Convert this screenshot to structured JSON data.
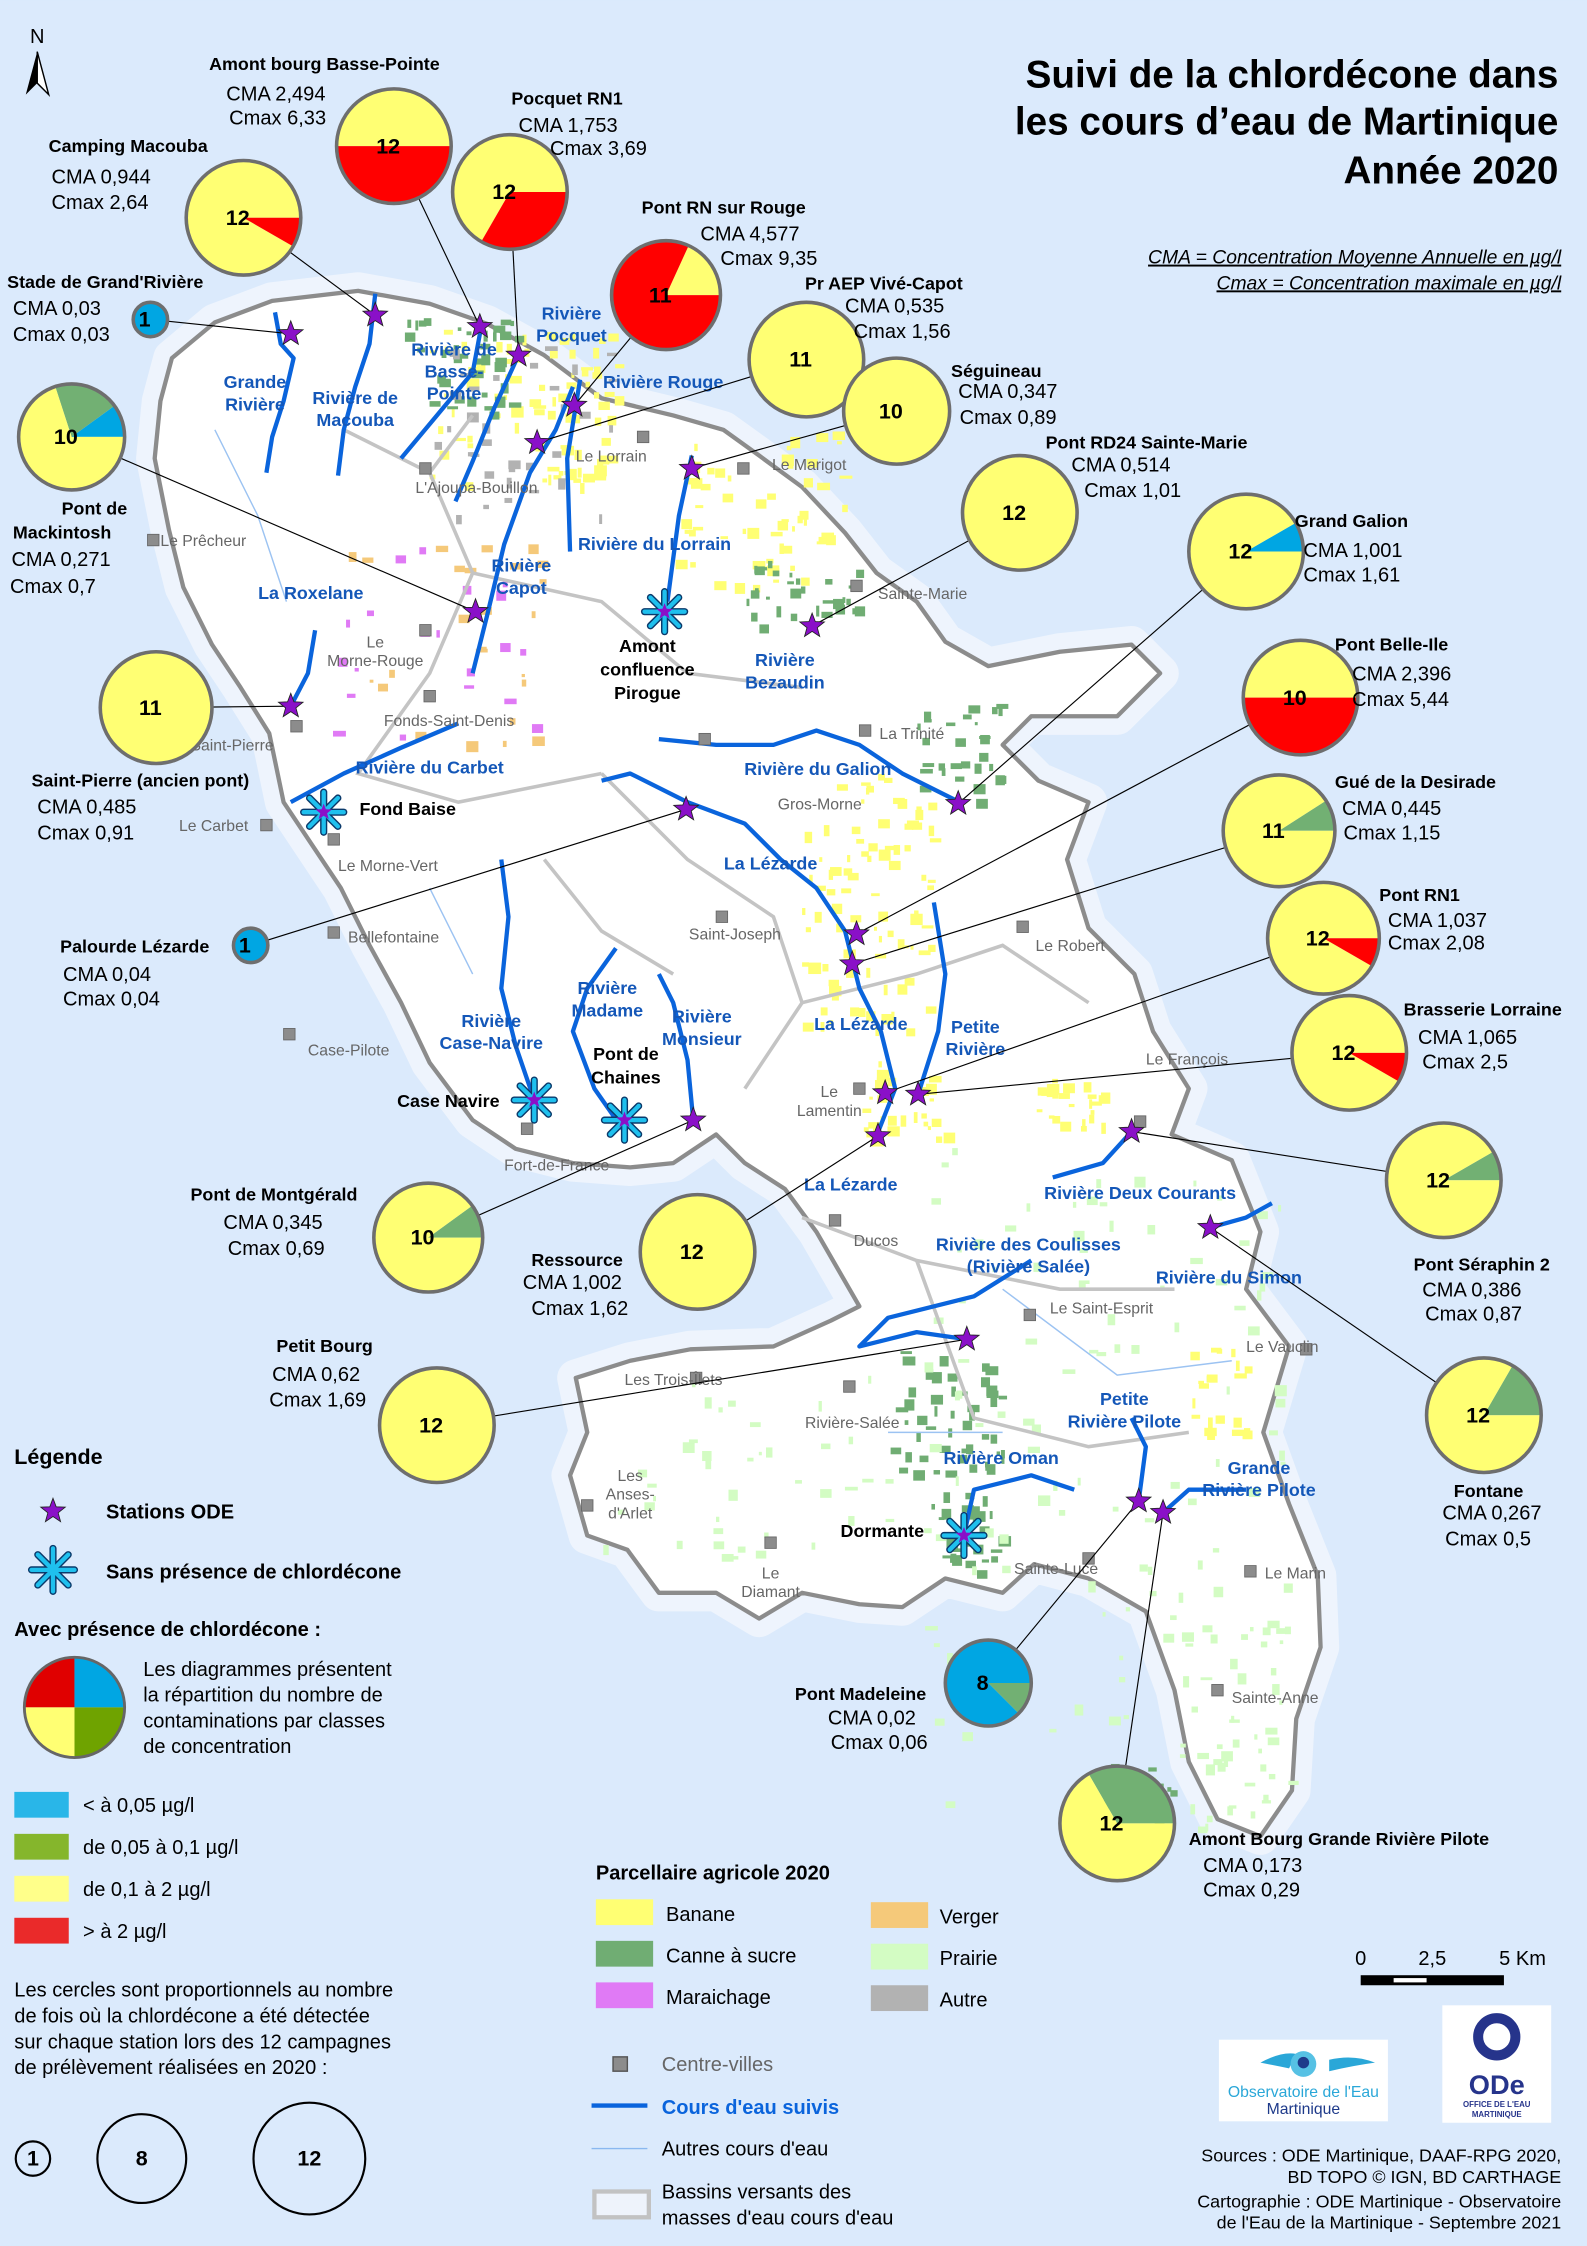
{
  "title": {
    "lines": [
      "Suivi de la chlordécone dans",
      "les cours d’eau de Martinique",
      "Année 2020"
    ]
  },
  "definitions": [
    "CMA = Concentration Moyenne Annuelle en µg/l",
    "Cmax = Concentration maximale en µg/l"
  ],
  "north_label": "N",
  "class_colors": {
    "lt_0_05": "#00a6e3",
    "from_0_05_to_0_1": "#72b073",
    "from_0_1_to_2": "#ffff73",
    "gt_2": "#ff0000"
  },
  "stations": [
    {
      "name": "Amont bourg Basse-Pointe",
      "cma": "CMA 2,494",
      "cmax": "Cmax 6,33",
      "count": "12",
      "classes": [
        0,
        0,
        6,
        6
      ]
    },
    {
      "name": "Camping Macouba",
      "cma": "CMA 0,944",
      "cmax": "Cmax 2,64",
      "count": "12",
      "classes": [
        0,
        0,
        11,
        1
      ]
    },
    {
      "name": "Pocquet RN1",
      "cma": "CMA 1,753",
      "cmax": "Cmax 3,69",
      "count": "12",
      "classes": [
        0,
        0,
        8,
        4
      ]
    },
    {
      "name": "Pont RN sur Rouge",
      "cma": "CMA 4,577",
      "cmax": "Cmax 9,35",
      "count": "11",
      "classes": [
        0,
        0,
        2,
        9
      ]
    },
    {
      "name": "Pr AEP Vivé-Capot",
      "cma": "CMA 0,535",
      "cmax": "Cmax 1,56",
      "count": "11",
      "classes": [
        0,
        0,
        11,
        0
      ]
    },
    {
      "name": "Séguineau",
      "cma": "CMA 0,347",
      "cmax": "Cmax 0,89",
      "count": "10",
      "classes": [
        0,
        0,
        10,
        0
      ]
    },
    {
      "name": "Pont RD24 Sainte-Marie",
      "cma": "CMA 0,514",
      "cmax": "Cmax 1,01",
      "count": "12",
      "classes": [
        0,
        0,
        12,
        0
      ]
    },
    {
      "name": "Grand Galion",
      "cma": "CMA 1,001",
      "cmax": "Cmax 1,61",
      "count": "12",
      "classes": [
        1,
        0,
        11,
        0
      ]
    },
    {
      "name": "Pont Belle-Ile",
      "cma": "CMA 2,396",
      "cmax": "Cmax 5,44",
      "count": "10",
      "classes": [
        0,
        0,
        5,
        5
      ]
    },
    {
      "name": "Gué de la Desirade",
      "cma": "CMA 0,445",
      "cmax": "Cmax 1,15",
      "count": "11",
      "classes": [
        0,
        1,
        10,
        0
      ]
    },
    {
      "name": "Pont RN1",
      "cma": "CMA 1,037",
      "cmax": "Cmax 2,08",
      "count": "12",
      "classes": [
        0,
        0,
        11,
        1
      ]
    },
    {
      "name": "Brasserie Lorraine",
      "cma": "CMA 1,065",
      "cmax": "Cmax 2,5",
      "count": "12",
      "classes": [
        0,
        0,
        11,
        1
      ]
    },
    {
      "name": "Pont Séraphin 2",
      "cma": "CMA 0,386",
      "cmax": "Cmax 0,87",
      "count": "12",
      "classes": [
        0,
        1,
        11,
        0
      ]
    },
    {
      "name": "Fontane",
      "cma": "CMA 0,267",
      "cmax": "Cmax 0,5",
      "count": "12",
      "classes": [
        0,
        2,
        10,
        0
      ]
    },
    {
      "name": "Stade de Grand'Rivière",
      "cma": "CMA 0,03",
      "cmax": "Cmax 0,03",
      "count": "1",
      "classes": [
        1,
        0,
        0,
        0
      ]
    },
    {
      "name": "Pont de Mackintosh",
      "cma": "CMA 0,271",
      "cmax": "Cmax 0,7",
      "count": "10",
      "classes": [
        1,
        2,
        7,
        0
      ]
    },
    {
      "name": "Saint-Pierre (ancien pont)",
      "cma": "CMA 0,485",
      "cmax": "Cmax 0,91",
      "count": "11",
      "classes": [
        0,
        0,
        11,
        0
      ]
    },
    {
      "name": "Palourde Lézarde",
      "cma": "CMA 0,04",
      "cmax": "Cmax 0,04",
      "count": "1",
      "classes": [
        1,
        0,
        0,
        0
      ]
    },
    {
      "name": "Pont de Montgérald",
      "cma": "CMA 0,345",
      "cmax": "Cmax 0,69",
      "count": "10",
      "classes": [
        0,
        1,
        9,
        0
      ]
    },
    {
      "name": "Ressource",
      "cma": "CMA 1,002",
      "cmax": "Cmax 1,62",
      "count": "12",
      "classes": [
        0,
        0,
        12,
        0
      ]
    },
    {
      "name": "Petit Bourg",
      "cma": "CMA 0,62",
      "cmax": "Cmax 1,69",
      "count": "12",
      "classes": [
        0,
        0,
        12,
        0
      ]
    },
    {
      "name": "Pont Madeleine",
      "cma": "CMA 0,02",
      "cmax": "Cmax 0,06",
      "count": "8",
      "classes": [
        7,
        1,
        0,
        0
      ]
    },
    {
      "name": "Amont Bourg Grande Rivière Pilote",
      "cma": "CMA 0,173",
      "cmax": "Cmax 0,29",
      "count": "12",
      "classes": [
        0,
        4,
        8,
        0
      ]
    }
  ],
  "stations_without_chlordecone": [
    {
      "lines": [
        "Amont",
        "confluence",
        "Pirogue"
      ]
    },
    {
      "lines": [
        "Fond Baise"
      ]
    },
    {
      "lines": [
        "Case Navire"
      ]
    },
    {
      "lines": [
        "Pont de",
        "Chaines"
      ]
    },
    {
      "lines": [
        "Dormante"
      ]
    }
  ],
  "towns": [
    {
      "lines": [
        "Le Prêcheur"
      ]
    },
    {
      "lines": [
        "L'Ajoupa-Bouillon"
      ]
    },
    {
      "lines": [
        "Le Lorrain"
      ]
    },
    {
      "lines": [
        "Le Marigot"
      ]
    },
    {
      "lines": [
        "Sainte-Marie"
      ]
    },
    {
      "lines": [
        "Le",
        "Morne-Rouge"
      ]
    },
    {
      "lines": [
        "Fonds-Saint-Denis"
      ]
    },
    {
      "lines": [
        "Saint-Pierre"
      ]
    },
    {
      "lines": [
        "La Trinité"
      ]
    },
    {
      "lines": [
        "Gros-Morne"
      ]
    },
    {
      "lines": [
        "Le Carbet"
      ]
    },
    {
      "lines": [
        "Le Morne-Vert"
      ]
    },
    {
      "lines": [
        "Saint-Joseph"
      ]
    },
    {
      "lines": [
        "Le Robert"
      ]
    },
    {
      "lines": [
        "Bellefontaine"
      ]
    },
    {
      "lines": [
        "Case-Pilote"
      ]
    },
    {
      "lines": [
        "Le François"
      ]
    },
    {
      "lines": [
        "Le",
        "Lamentin"
      ]
    },
    {
      "lines": [
        "Fort-de-France"
      ]
    },
    {
      "lines": [
        "Ducos"
      ]
    },
    {
      "lines": [
        "Le Saint-Esprit"
      ]
    },
    {
      "lines": [
        "Le Vauclin"
      ]
    },
    {
      "lines": [
        "Les Trois-Îlets"
      ]
    },
    {
      "lines": [
        "Rivière-Salée"
      ]
    },
    {
      "lines": [
        "Les",
        "Anses-",
        "d'Arlet"
      ]
    },
    {
      "lines": [
        "Le",
        "Diamant"
      ]
    },
    {
      "lines": [
        "Sainte-Luce"
      ]
    },
    {
      "lines": [
        "Le Marin"
      ]
    },
    {
      "lines": [
        "Sainte-Anne"
      ]
    }
  ],
  "rivers": [
    {
      "lines": [
        "Grande",
        "Rivière"
      ]
    },
    {
      "lines": [
        "Rivière de",
        "Macouba"
      ]
    },
    {
      "lines": [
        "Rivière de",
        "Basse-",
        "Pointe"
      ]
    },
    {
      "lines": [
        "Rivière",
        "Pocquet"
      ]
    },
    {
      "lines": [
        "Rivière Rouge"
      ]
    },
    {
      "lines": [
        "Rivière du Lorrain"
      ]
    },
    {
      "lines": [
        "Rivière",
        "Capot"
      ]
    },
    {
      "lines": [
        "La Roxelane"
      ]
    },
    {
      "lines": [
        "Rivière",
        "Bezaudin"
      ]
    },
    {
      "lines": [
        "Rivière du Carbet"
      ]
    },
    {
      "lines": [
        "Rivière du Galion"
      ]
    },
    {
      "lines": [
        "La Lézarde"
      ]
    },
    {
      "lines": [
        "La Lézarde"
      ]
    },
    {
      "lines": [
        "Petite",
        "Rivière"
      ]
    },
    {
      "lines": [
        "Rivière",
        "Madame"
      ]
    },
    {
      "lines": [
        "Rivière",
        "Case-Navire"
      ]
    },
    {
      "lines": [
        "Rivière",
        "Monsieur"
      ]
    },
    {
      "lines": [
        "La Lézarde"
      ]
    },
    {
      "lines": [
        "Rivière Deux Courants"
      ]
    },
    {
      "lines": [
        "Rivière des Coulisses",
        "(Rivière Salée)"
      ]
    },
    {
      "lines": [
        "Rivière du Simon"
      ]
    },
    {
      "lines": [
        "Petite",
        "Rivière Pilote"
      ]
    },
    {
      "lines": [
        "Grande",
        "Rivière Pilote"
      ]
    },
    {
      "lines": [
        "Rivière Oman"
      ]
    }
  ],
  "legend": {
    "heading": "Légende",
    "stations_ode": "Stations ODE",
    "without": "Sans présence de chlordécone",
    "with_heading": "Avec présence de chlordécone :",
    "pie_text": [
      "Les diagrammes présentent",
      "la répartition du nombre de",
      "contaminations par classes",
      "de concentration"
    ],
    "classes": [
      {
        "label": "< à 0,05 µg/l",
        "color": "#29b6e8"
      },
      {
        "label": "de 0,05 à 0,1 µg/l",
        "color": "#85b62c"
      },
      {
        "label": "de 0,1 à 2 µg/l",
        "color": "#ffff8a"
      },
      {
        "label": "> à 2 µg/l",
        "color": "#ea2a2a"
      }
    ],
    "circles_text": [
      "Les cercles sont proportionnels au nombre",
      "de fois où la chlordécone a été détectée",
      "sur chaque station lors des 12 campagnes",
      "de prélèvement réalisées en 2020 :"
    ],
    "circle_sizes": [
      "1",
      "8",
      "12"
    ]
  },
  "agri_legend": {
    "title": "Parcellaire agricole 2020",
    "items": [
      {
        "label": "Banane",
        "color": "#ffff73"
      },
      {
        "label": "Canne à sucre",
        "color": "#70ad73"
      },
      {
        "label": "Maraichage",
        "color": "#e07af5"
      },
      {
        "label": "Verger",
        "color": "#f5c97a"
      },
      {
        "label": "Prairie",
        "color": "#d3fcc3"
      },
      {
        "label": "Autre",
        "color": "#b2b2b2"
      }
    ]
  },
  "layers_legend": {
    "towns": "Centre-villes",
    "rivers_followed": "Cours d'eau suivis",
    "other_rivers": "Autres cours d'eau",
    "basins": [
      "Bassins versants des",
      "masses d'eau cours d'eau"
    ]
  },
  "scale": {
    "ticks": [
      "0",
      "2,5",
      "5 Km"
    ]
  },
  "logos": {
    "observatoire": [
      "Observatoire de l'Eau",
      "Martinique"
    ],
    "ode": [
      "ODe",
      "OFFICE DE L'EAU",
      "MARTINIQUE"
    ]
  },
  "sources": [
    "Sources : ODE Martinique, DAAF-RPG 2020,",
    "BD TOPO © IGN, BD CARTHAGE",
    "Cartographie : ODE Martinique - Observatoire",
    "de l'Eau de la Martinique - Septembre 2021"
  ]
}
